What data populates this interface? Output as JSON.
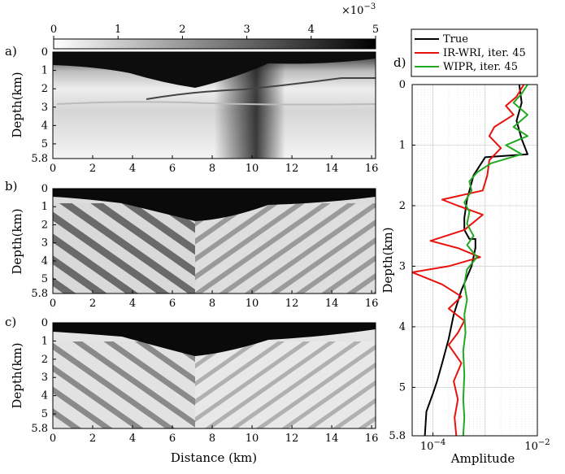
{
  "colorbar": {
    "ticks": [
      "0",
      "1",
      "2",
      "3",
      "4",
      "5"
    ],
    "exponent_base": "×10",
    "exponent_power": "−3"
  },
  "panels": [
    {
      "label": "a)",
      "ylabel": "Depth(km)",
      "yticks": [
        "0",
        "1",
        "2",
        "3",
        "4",
        "5",
        "5.8"
      ],
      "xticks": [
        "0",
        "2",
        "4",
        "6",
        "8",
        "10",
        "12",
        "14",
        "16"
      ]
    },
    {
      "label": "b)",
      "ylabel": "Depth(km)",
      "yticks": [
        "0",
        "1",
        "2",
        "3",
        "4",
        "5",
        "5.8"
      ],
      "xticks": [
        "0",
        "2",
        "4",
        "6",
        "8",
        "10",
        "12",
        "14",
        "16"
      ]
    },
    {
      "label": "c)",
      "ylabel": "Depth(km)",
      "yticks": [
        "0",
        "1",
        "2",
        "3",
        "4",
        "5",
        "5.8"
      ],
      "xticks": [
        "0",
        "2",
        "4",
        "6",
        "8",
        "10",
        "12",
        "14",
        "16"
      ],
      "xlabel": "Distance (km)"
    }
  ],
  "chart_data": {
    "type": "line",
    "panel_label": "d)",
    "xlabel": "Amplitude",
    "ylabel": "Depth(km)",
    "x_scale": "log",
    "xlim": [
      4e-05,
      0.01
    ],
    "ylim": [
      5.8,
      0
    ],
    "xticks": [
      {
        "base": "10",
        "exp": "−4"
      },
      {
        "base": "10",
        "exp": "−2"
      }
    ],
    "yticks": [
      "0",
      "1",
      "2",
      "3",
      "4",
      "5",
      "5.8"
    ],
    "grid": true,
    "legend_placement": "top",
    "series": [
      {
        "name": "True",
        "color": "#000000",
        "points": [
          [
            0.0045,
            0
          ],
          [
            0.005,
            0.3
          ],
          [
            0.004,
            0.6
          ],
          [
            0.005,
            0.9
          ],
          [
            0.0065,
            1.15
          ],
          [
            0.001,
            1.2
          ],
          [
            0.0006,
            1.5
          ],
          [
            0.00045,
            1.9
          ],
          [
            0.0004,
            2.2
          ],
          [
            0.0004,
            2.4
          ],
          [
            0.0005,
            2.55
          ],
          [
            0.00065,
            2.55
          ],
          [
            0.00065,
            2.7
          ],
          [
            0.00055,
            3.0
          ],
          [
            0.00035,
            3.4
          ],
          [
            0.00025,
            3.8
          ],
          [
            0.0002,
            4.2
          ],
          [
            0.00015,
            4.6
          ],
          [
            0.00012,
            4.9
          ],
          [
            0.0001,
            5.1
          ],
          [
            7.5e-05,
            5.4
          ],
          [
            7e-05,
            5.8
          ]
        ]
      },
      {
        "name": "IR-WRI, iter. 45",
        "color": "#e8120c",
        "points": [
          [
            0.0055,
            0
          ],
          [
            0.004,
            0.2
          ],
          [
            0.0025,
            0.35
          ],
          [
            0.0035,
            0.5
          ],
          [
            0.0015,
            0.7
          ],
          [
            0.0012,
            0.85
          ],
          [
            0.002,
            1.05
          ],
          [
            0.0012,
            1.25
          ],
          [
            0.0011,
            1.5
          ],
          [
            0.0009,
            1.75
          ],
          [
            0.00015,
            1.9
          ],
          [
            0.0003,
            2.0
          ],
          [
            0.0009,
            2.15
          ],
          [
            0.0004,
            2.4
          ],
          [
            9e-05,
            2.58
          ],
          [
            0.0003,
            2.7
          ],
          [
            0.0008,
            2.85
          ],
          [
            0.0002,
            3.0
          ],
          [
            4e-05,
            3.1
          ],
          [
            0.00015,
            3.3
          ],
          [
            0.00035,
            3.5
          ],
          [
            0.0002,
            3.7
          ],
          [
            0.0004,
            3.9
          ],
          [
            0.0003,
            4.1
          ],
          [
            0.0002,
            4.3
          ],
          [
            0.00035,
            4.6
          ],
          [
            0.00025,
            4.9
          ],
          [
            0.0003,
            5.2
          ],
          [
            0.00026,
            5.5
          ],
          [
            0.00028,
            5.8
          ]
        ]
      },
      {
        "name": "WIPR, iter. 45",
        "color": "#22a822",
        "points": [
          [
            0.0065,
            0
          ],
          [
            0.005,
            0.15
          ],
          [
            0.0035,
            0.3
          ],
          [
            0.0065,
            0.5
          ],
          [
            0.0035,
            0.7
          ],
          [
            0.0065,
            0.85
          ],
          [
            0.0025,
            1.0
          ],
          [
            0.005,
            1.15
          ],
          [
            0.0013,
            1.3
          ],
          [
            0.0007,
            1.45
          ],
          [
            0.0005,
            1.6
          ],
          [
            0.00055,
            1.75
          ],
          [
            0.0004,
            1.95
          ],
          [
            0.0005,
            2.1
          ],
          [
            0.00045,
            2.3
          ],
          [
            0.0006,
            2.5
          ],
          [
            0.00045,
            2.65
          ],
          [
            0.0007,
            2.85
          ],
          [
            0.00045,
            3.05
          ],
          [
            0.0004,
            3.3
          ],
          [
            0.00045,
            3.55
          ],
          [
            0.0004,
            3.8
          ],
          [
            0.00042,
            4.1
          ],
          [
            0.00038,
            4.4
          ],
          [
            0.0004,
            4.8
          ],
          [
            0.00038,
            5.2
          ],
          [
            0.0004,
            5.5
          ],
          [
            0.00038,
            5.8
          ]
        ]
      }
    ]
  }
}
